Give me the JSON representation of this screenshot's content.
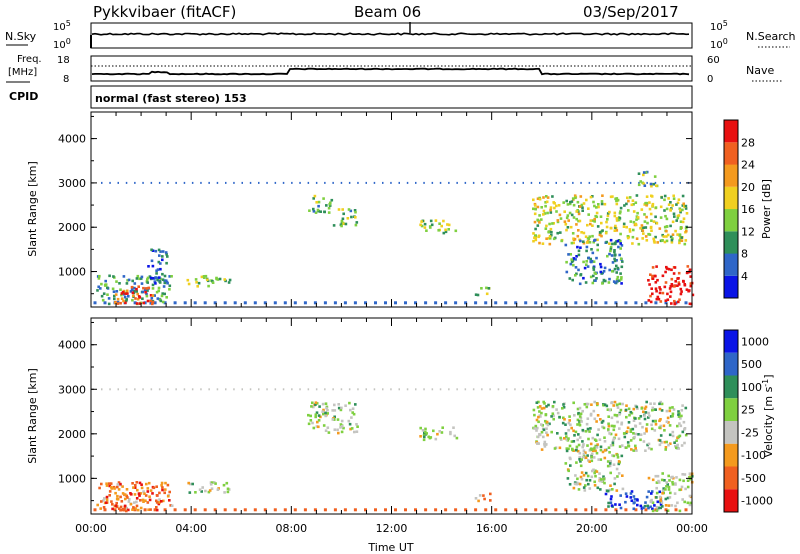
{
  "header": {
    "station": "Pykkvibaer (fitACF)",
    "beam": "Beam 06",
    "date": "03/Sep/2017"
  },
  "strip_nsky": {
    "left_label": "N.Sky",
    "right_label": "N.Search",
    "ticks": [
      "10^5",
      "10^0"
    ],
    "right_ticks": [
      "10^5",
      "10^0"
    ]
  },
  "strip_freq": {
    "left_label_1": "Freq.",
    "left_label_2": "[MHz]",
    "right_label": "Nave",
    "left_ticks": [
      "18",
      "8"
    ],
    "right_ticks": [
      "60",
      "0"
    ]
  },
  "cpid": {
    "label": "CPID",
    "text": "normal (fast stereo) 153"
  },
  "colors": {
    "power": [
      "#0a14e6",
      "#2f66c8",
      "#2f8f5a",
      "#7fd040",
      "#f0d020",
      "#f49a1e",
      "#f06020",
      "#e81010"
    ],
    "velocity": [
      "#0a14e6",
      "#2f66c8",
      "#2f8f5a",
      "#7fd040",
      "#c4c4c0",
      "#f49a1e",
      "#f06020",
      "#e81010"
    ]
  },
  "chart_data": [
    {
      "type": "heatmap",
      "name": "power",
      "ylabel": "Slant Range [km]",
      "yticks": [
        "1000",
        "2000",
        "3000",
        "4000"
      ],
      "ylim": [
        200,
        4600
      ],
      "colorbar_label": "Power [dB]",
      "colorbar_ticks": [
        "4",
        "8",
        "12",
        "16",
        "20",
        "24",
        "28"
      ],
      "regions": [
        {
          "t0": 0.2,
          "t1": 3.2,
          "r0": 250,
          "r1": 900,
          "level": 0.3
        },
        {
          "t0": 0.9,
          "t1": 2.6,
          "r0": 250,
          "r1": 650,
          "level": 0.85
        },
        {
          "t0": 2.2,
          "t1": 3.0,
          "r0": 700,
          "r1": 1500,
          "level": 0.2
        },
        {
          "t0": 3.8,
          "t1": 5.6,
          "r0": 650,
          "r1": 900,
          "level": 0.45
        },
        {
          "t0": 8.6,
          "t1": 9.6,
          "r0": 2300,
          "r1": 2700,
          "level": 0.35
        },
        {
          "t0": 9.6,
          "t1": 10.6,
          "r0": 2000,
          "r1": 2400,
          "level": 0.4
        },
        {
          "t0": 13.1,
          "t1": 14.6,
          "r0": 1850,
          "r1": 2150,
          "level": 0.45
        },
        {
          "t0": 15.3,
          "t1": 15.9,
          "r0": 450,
          "r1": 650,
          "level": 0.5
        },
        {
          "t0": 17.6,
          "t1": 23.8,
          "r0": 1600,
          "r1": 2700,
          "level": 0.5
        },
        {
          "t0": 18.9,
          "t1": 21.2,
          "r0": 700,
          "r1": 1700,
          "level": 0.25
        },
        {
          "t0": 22.2,
          "t1": 24.0,
          "r0": 250,
          "r1": 1100,
          "level": 0.95
        },
        {
          "t0": 21.8,
          "t1": 22.6,
          "r0": 2900,
          "r1": 3250,
          "level": 0.4
        }
      ]
    },
    {
      "type": "heatmap",
      "name": "velocity",
      "ylabel": "Slant Range [km]",
      "yticks": [
        "1000",
        "2000",
        "3000",
        "4000"
      ],
      "ylim": [
        200,
        4600
      ],
      "xlabel": "Time UT",
      "xticks": [
        "00:00",
        "04:00",
        "08:00",
        "12:00",
        "16:00",
        "20:00",
        "00:00"
      ],
      "xlim": [
        0,
        24
      ],
      "colorbar_label": "Velocity [m s^-1]",
      "colorbar_ticks": [
        "1000",
        "500",
        "100",
        "25",
        "-25",
        "-100",
        "-500",
        "-1000"
      ],
      "regions": [
        {
          "t0": 0.2,
          "t1": 3.2,
          "r0": 250,
          "r1": 900,
          "level": 0.75
        },
        {
          "t0": 0.9,
          "t1": 2.6,
          "r0": 250,
          "r1": 650,
          "level": 0.78
        },
        {
          "t0": 3.8,
          "t1": 5.6,
          "r0": 650,
          "r1": 900,
          "level": 0.5
        },
        {
          "t0": 8.6,
          "t1": 10.6,
          "r0": 2000,
          "r1": 2700,
          "level": 0.5
        },
        {
          "t0": 13.1,
          "t1": 14.6,
          "r0": 1850,
          "r1": 2150,
          "level": 0.5
        },
        {
          "t0": 15.3,
          "t1": 15.9,
          "r0": 450,
          "r1": 650,
          "level": 0.7
        },
        {
          "t0": 17.6,
          "t1": 23.8,
          "r0": 1600,
          "r1": 2700,
          "level": 0.5
        },
        {
          "t0": 18.9,
          "t1": 21.2,
          "r0": 700,
          "r1": 1700,
          "level": 0.5
        },
        {
          "t0": 20.5,
          "t1": 22.8,
          "r0": 300,
          "r1": 700,
          "level": 0.2
        },
        {
          "t0": 22.2,
          "t1": 24.0,
          "r0": 250,
          "r1": 1100,
          "level": 0.5
        }
      ]
    }
  ]
}
